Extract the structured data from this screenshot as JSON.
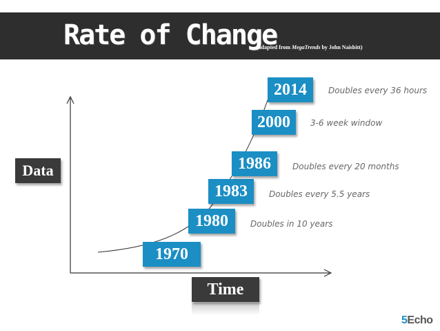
{
  "header": {
    "title": "Rate of Change",
    "subtitle_prefix": "(adapted from ",
    "subtitle_book": "MegaTrends",
    "subtitle_suffix": " by John Naisbitt)"
  },
  "axes": {
    "y_label": "Data",
    "x_label": "Time"
  },
  "milestones": [
    {
      "year": "1970",
      "note": ""
    },
    {
      "year": "1980",
      "note": "Doubles in 10 years"
    },
    {
      "year": "1983",
      "note": "Doubles every 5.5 years"
    },
    {
      "year": "1986",
      "note": "Doubles every 20 months"
    },
    {
      "year": "2000",
      "note": "3-6 week window"
    },
    {
      "year": "2014",
      "note": "Doubles every 36 hours"
    }
  ],
  "logo": {
    "number": "5",
    "word": "Echo"
  },
  "colors": {
    "header_bg": "#2e2e2e",
    "year_box": "#1b8ec4",
    "axis_label_box": "#3a3a3a",
    "note_text": "#666666"
  }
}
